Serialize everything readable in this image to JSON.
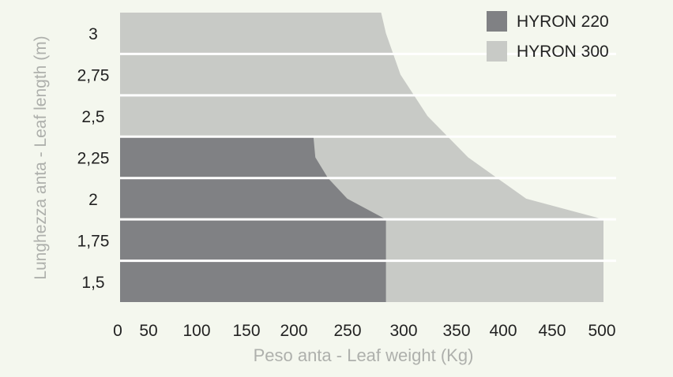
{
  "chart_data": {
    "type": "area",
    "title": "",
    "xlabel": "Peso anta - Leaf weight (Kg)",
    "ylabel": "Lunghezza anta - Leaf length (m)",
    "x_ticks": [
      "0",
      "50",
      "100",
      "150",
      "200",
      "250",
      "300",
      "350",
      "400",
      "450",
      "500"
    ],
    "x_tick_values": [
      0,
      50,
      100,
      150,
      200,
      250,
      300,
      350,
      400,
      450,
      500
    ],
    "y_ticks": [
      "1,5",
      "1,75",
      "2",
      "2,25",
      "2,5",
      "2,75",
      "3"
    ],
    "y_tick_values": [
      1.5,
      1.75,
      2.0,
      2.25,
      2.5,
      2.75,
      3.0
    ],
    "xlim": [
      0,
      500
    ],
    "ylim": [
      1.5,
      3.0
    ],
    "grid": "horizontal",
    "legend_position": "top-right",
    "series": [
      {
        "name": "HYRON 300",
        "color": "#c8cac6",
        "boundary": [
          {
            "x": 270,
            "y": 3.0
          },
          {
            "x": 275,
            "y": 2.875
          },
          {
            "x": 290,
            "y": 2.625
          },
          {
            "x": 318,
            "y": 2.375
          },
          {
            "x": 360,
            "y": 2.125
          },
          {
            "x": 420,
            "y": 1.875
          },
          {
            "x": 500,
            "y": 1.75
          }
        ]
      },
      {
        "name": "HYRON 220",
        "color": "#808184",
        "boundary": [
          {
            "x": 200,
            "y": 2.25
          },
          {
            "x": 202,
            "y": 2.125
          },
          {
            "x": 215,
            "y": 2.0
          },
          {
            "x": 235,
            "y": 1.875
          },
          {
            "x": 275,
            "y": 1.75
          }
        ]
      }
    ]
  }
}
